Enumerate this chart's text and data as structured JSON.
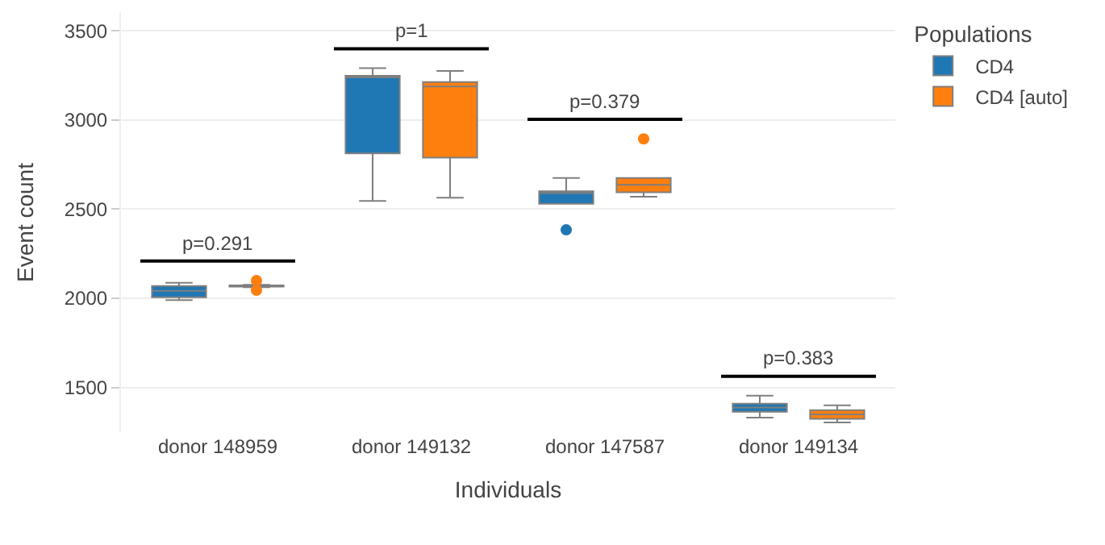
{
  "chart_data": {
    "type": "box",
    "xlabel": "Individuals",
    "ylabel": "Event count",
    "legend_title": "Populations",
    "categories": [
      "donor 148959",
      "donor 149132",
      "donor 147587",
      "donor 149134"
    ],
    "series": [
      {
        "name": "CD4",
        "color": "#1f77b4",
        "boxes": [
          {
            "low": 1990,
            "q1": 2006,
            "median": 2042,
            "q3": 2069,
            "high": 2087
          },
          {
            "low": 2546,
            "q1": 2813,
            "median": 3240,
            "q3": 3248,
            "high": 3290
          },
          {
            "low": 2530,
            "q1": 2530,
            "median": 2590,
            "q3": 2600,
            "high": 2675,
            "outliers": [
              2384
            ]
          },
          {
            "low": 1331,
            "q1": 1364,
            "median": 1388,
            "q3": 1409,
            "high": 1454
          }
        ]
      },
      {
        "name": "CD4 [auto]",
        "color": "#ff7f0e",
        "boxes": [
          {
            "low": 2062,
            "q1": 2066,
            "median": 2068,
            "q3": 2072,
            "high": 2076,
            "outliers": [
              2100,
              2045
            ]
          },
          {
            "low": 2564,
            "q1": 2789,
            "median": 3188,
            "q3": 3212,
            "high": 3275
          },
          {
            "low": 2570,
            "q1": 2594,
            "median": 2636,
            "q3": 2675,
            "high": 2675,
            "outliers": [
              2894
            ]
          },
          {
            "low": 1304,
            "q1": 1325,
            "median": 1349,
            "q3": 1373,
            "high": 1400
          }
        ]
      }
    ],
    "annotations": [
      "p=0.291",
      "p=1",
      "p=0.379",
      "p=0.383"
    ],
    "ylim": [
      1250,
      3600
    ],
    "yticks": [
      1500,
      2000,
      2500,
      3000,
      3500
    ],
    "grid": "y",
    "legend": "top right"
  }
}
